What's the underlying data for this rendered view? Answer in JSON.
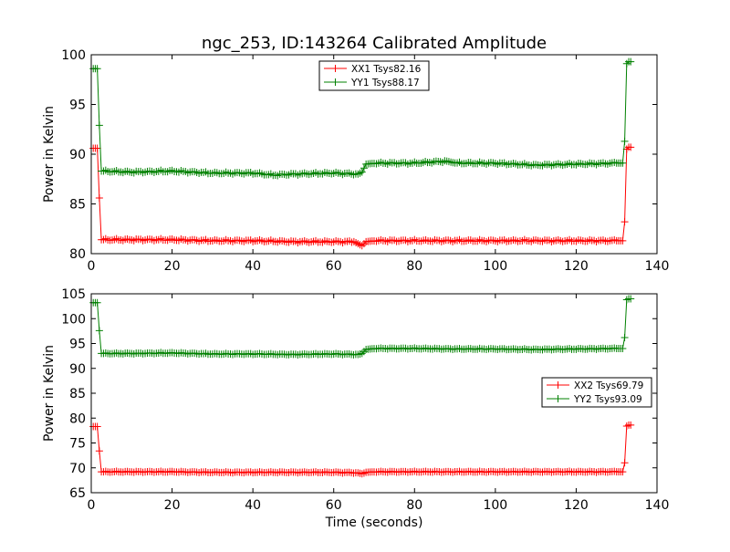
{
  "title": "ngc_253, ID:143264 Calibrated Amplitude",
  "colors": {
    "red": "#ff0000",
    "green": "#008000"
  },
  "chart_data": [
    {
      "type": "line",
      "xlabel": "",
      "ylabel": "Power in Kelvin",
      "xlim": [
        0,
        140
      ],
      "ylim": [
        80,
        100
      ],
      "xticks": [
        0,
        20,
        40,
        60,
        80,
        100,
        120,
        140
      ],
      "yticks": [
        80,
        85,
        90,
        95,
        100
      ],
      "legend_position": "top-center",
      "series": [
        {
          "name": "XX1 Tsys82.16",
          "color": "#ff0000",
          "marker": "+",
          "points": [
            [
              0.5,
              90.6
            ],
            [
              1.0,
              90.6
            ],
            [
              1.5,
              90.6
            ],
            [
              2.0,
              85.6
            ],
            [
              2.5,
              81.4
            ],
            [
              10,
              81.4
            ],
            [
              20,
              81.4
            ],
            [
              30,
              81.3
            ],
            [
              40,
              81.3
            ],
            [
              50,
              81.2
            ],
            [
              60,
              81.2
            ],
            [
              65,
              81.2
            ],
            [
              66,
              81.0
            ],
            [
              67,
              80.8
            ],
            [
              68,
              81.2
            ],
            [
              70,
              81.3
            ],
            [
              80,
              81.3
            ],
            [
              90,
              81.3
            ],
            [
              100,
              81.3
            ],
            [
              110,
              81.3
            ],
            [
              120,
              81.3
            ],
            [
              130,
              81.3
            ],
            [
              131.5,
              81.3
            ],
            [
              132,
              83.2
            ],
            [
              132.5,
              90.5
            ],
            [
              133,
              90.7
            ],
            [
              133.5,
              90.7
            ]
          ]
        },
        {
          "name": "YY1 Tsys88.17",
          "color": "#008000",
          "marker": "+",
          "points": [
            [
              0.5,
              98.6
            ],
            [
              1.0,
              98.6
            ],
            [
              1.5,
              98.6
            ],
            [
              2.0,
              92.9
            ],
            [
              2.5,
              88.3
            ],
            [
              10,
              88.2
            ],
            [
              20,
              88.3
            ],
            [
              30,
              88.1
            ],
            [
              40,
              88.1
            ],
            [
              45,
              87.9
            ],
            [
              50,
              88.0
            ],
            [
              60,
              88.1
            ],
            [
              66,
              88.0
            ],
            [
              67,
              88.2
            ],
            [
              68,
              89.0
            ],
            [
              70,
              89.1
            ],
            [
              80,
              89.1
            ],
            [
              88,
              89.3
            ],
            [
              90,
              89.1
            ],
            [
              100,
              89.1
            ],
            [
              110,
              88.9
            ],
            [
              120,
              89.0
            ],
            [
              130,
              89.1
            ],
            [
              131.5,
              89.1
            ],
            [
              132,
              91.3
            ],
            [
              132.5,
              99.1
            ],
            [
              133,
              99.3
            ],
            [
              133.5,
              99.3
            ]
          ]
        }
      ]
    },
    {
      "type": "line",
      "xlabel": "Time (seconds)",
      "ylabel": "Power in Kelvin",
      "xlim": [
        0,
        140
      ],
      "ylim": [
        65,
        105
      ],
      "xticks": [
        0,
        20,
        40,
        60,
        80,
        100,
        120,
        140
      ],
      "yticks": [
        65,
        70,
        75,
        80,
        85,
        90,
        95,
        100,
        105
      ],
      "legend_position": "center-right",
      "series": [
        {
          "name": "XX2 Tsys69.79",
          "color": "#ff0000",
          "marker": "+",
          "points": [
            [
              0.5,
              78.3
            ],
            [
              1.0,
              78.3
            ],
            [
              1.5,
              78.3
            ],
            [
              2.0,
              73.4
            ],
            [
              2.5,
              69.2
            ],
            [
              10,
              69.2
            ],
            [
              20,
              69.2
            ],
            [
              30,
              69.1
            ],
            [
              40,
              69.1
            ],
            [
              50,
              69.1
            ],
            [
              60,
              69.1
            ],
            [
              66,
              69.0
            ],
            [
              67,
              68.8
            ],
            [
              68,
              69.1
            ],
            [
              70,
              69.2
            ],
            [
              80,
              69.2
            ],
            [
              90,
              69.2
            ],
            [
              100,
              69.2
            ],
            [
              110,
              69.2
            ],
            [
              120,
              69.2
            ],
            [
              130,
              69.2
            ],
            [
              131.5,
              69.2
            ],
            [
              132,
              71.0
            ],
            [
              132.5,
              78.4
            ],
            [
              133,
              78.6
            ],
            [
              133.5,
              78.6
            ]
          ]
        },
        {
          "name": "YY2 Tsys93.09",
          "color": "#008000",
          "marker": "+",
          "points": [
            [
              0.5,
              103.2
            ],
            [
              1.0,
              103.2
            ],
            [
              1.5,
              103.2
            ],
            [
              2.0,
              97.6
            ],
            [
              2.5,
              93.0
            ],
            [
              10,
              93.0
            ],
            [
              20,
              93.1
            ],
            [
              30,
              92.9
            ],
            [
              40,
              92.9
            ],
            [
              50,
              92.8
            ],
            [
              60,
              92.9
            ],
            [
              66,
              92.8
            ],
            [
              67,
              93.0
            ],
            [
              68,
              93.8
            ],
            [
              70,
              94.0
            ],
            [
              80,
              94.0
            ],
            [
              90,
              93.9
            ],
            [
              100,
              93.9
            ],
            [
              110,
              93.8
            ],
            [
              120,
              93.9
            ],
            [
              130,
              94.0
            ],
            [
              131.5,
              94.0
            ],
            [
              132,
              96.2
            ],
            [
              132.5,
              103.8
            ],
            [
              133,
              104.0
            ],
            [
              133.5,
              104.0
            ]
          ]
        }
      ]
    }
  ]
}
